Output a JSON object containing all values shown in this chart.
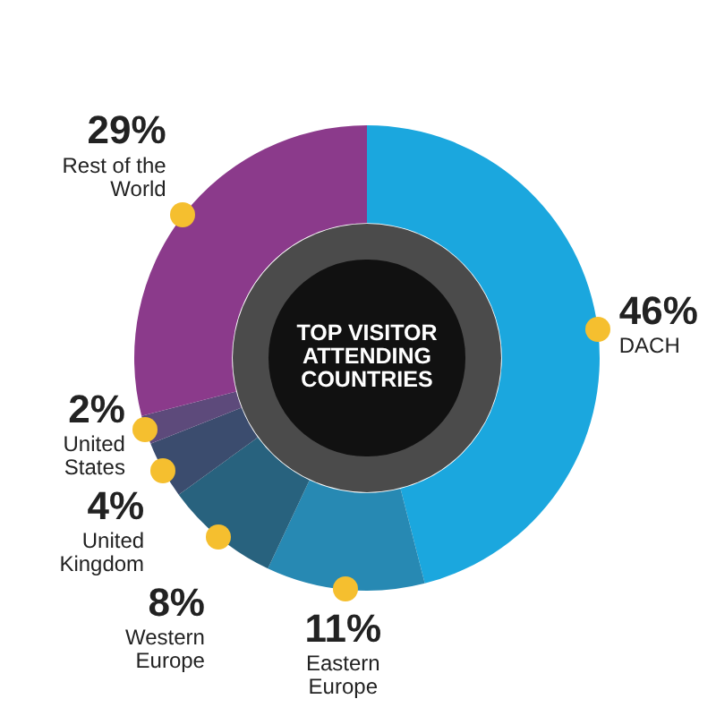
{
  "chart_data": {
    "type": "donut",
    "title": "TOP VISITOR ATTENDING COUNTRIES",
    "categories": [
      "DACH",
      "Eastern Europe",
      "Western Europe",
      "United Kingdom",
      "United States",
      "Rest of the World"
    ],
    "values": [
      46,
      11,
      8,
      4,
      2,
      29
    ],
    "colors": [
      "#1ba7de",
      "#2789b3",
      "#28627e",
      "#3b4c6e",
      "#5d4a7b",
      "#8b3a8b"
    ],
    "value_labels": [
      "46%",
      "11%",
      "8%",
      "4%",
      "2%",
      "29%"
    ]
  }
}
